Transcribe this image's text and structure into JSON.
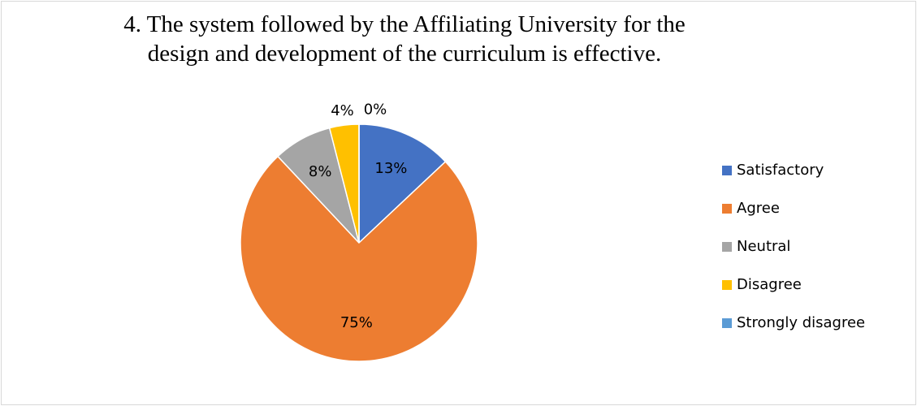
{
  "chart_data": {
    "type": "pie",
    "title": "4. The system followed by the Affiliating University for the design and development of the curriculum is effective.",
    "categories": [
      "Satisfactory",
      "Agree",
      "Neutral",
      "Disagree",
      "Strongly disagree"
    ],
    "values": [
      13,
      75,
      8,
      4,
      0
    ],
    "value_labels": [
      "13%",
      "75%",
      "8%",
      "4%",
      "0%"
    ],
    "colors": [
      "#4472c4",
      "#ed7d31",
      "#a5a5a5",
      "#ffc000",
      "#5b9bd5"
    ],
    "legend": "right"
  }
}
